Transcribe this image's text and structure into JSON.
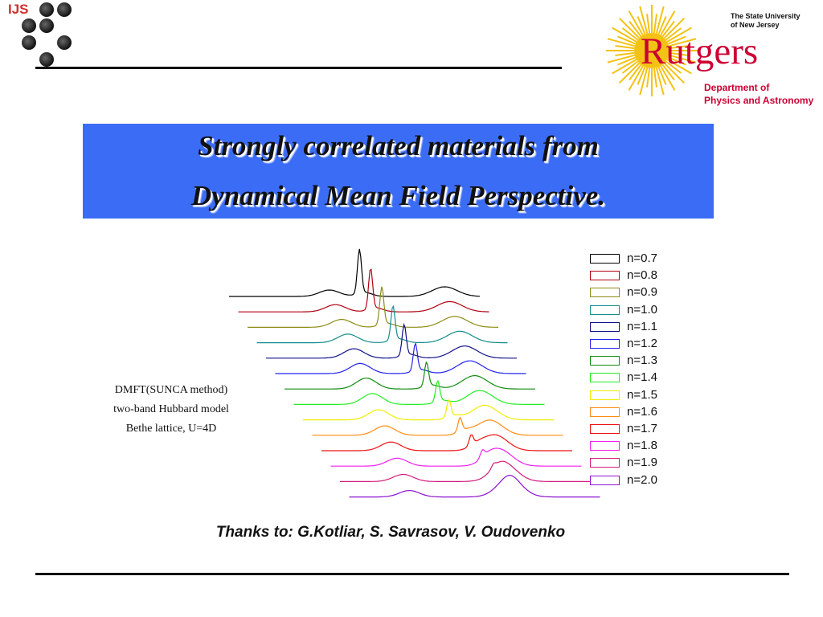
{
  "header": {
    "ijs_logo_text": "IJS",
    "rutgers_state_line_1": "The State University",
    "rutgers_state_line_2": "of New Jersey",
    "rutgers_name": "Rutgers",
    "rutgers_dept_line_1": "Department of",
    "rutgers_dept_line_2": "Physics and Astronomy"
  },
  "title": {
    "line_1": "Strongly correlated materials from",
    "line_2": "Dynamical Mean Field Perspective."
  },
  "side_note": {
    "line_1": "DMFT(SUNCA method)",
    "line_2": "two-band Hubbard model",
    "line_3": "Bethe lattice, U=4D"
  },
  "thanks": "Thanks to: G.Kotliar, S. Savrasov, V. Oudovenko",
  "colors": {
    "title_background": "#3b6cf5",
    "rutgers_red": "#cc0033",
    "sun_yellow": "#f4c214",
    "ijs_red": "#d0312d"
  },
  "chart_data": {
    "type": "line",
    "title": "",
    "xlabel": "",
    "ylabel": "",
    "grid": false,
    "legend_position": "right",
    "series": [
      {
        "name": "n=0.7",
        "color": "#000000"
      },
      {
        "name": "n=0.8",
        "color": "#b00010"
      },
      {
        "name": "n=0.9",
        "color": "#8c8c14"
      },
      {
        "name": "n=1.0",
        "color": "#138c8c"
      },
      {
        "name": "n=1.1",
        "color": "#11118c"
      },
      {
        "name": "n=1.2",
        "color": "#2222ee"
      },
      {
        "name": "n=1.3",
        "color": "#118c11"
      },
      {
        "name": "n=1.4",
        "color": "#22ee22"
      },
      {
        "name": "n=1.5",
        "color": "#eeee00"
      },
      {
        "name": "n=1.6",
        "color": "#ff8c11"
      },
      {
        "name": "n=1.7",
        "color": "#ee1111"
      },
      {
        "name": "n=1.8",
        "color": "#ee22ee"
      },
      {
        "name": "n=1.9",
        "color": "#d01c7c"
      },
      {
        "name": "n=2.0",
        "color": "#8c11d0"
      }
    ]
  }
}
